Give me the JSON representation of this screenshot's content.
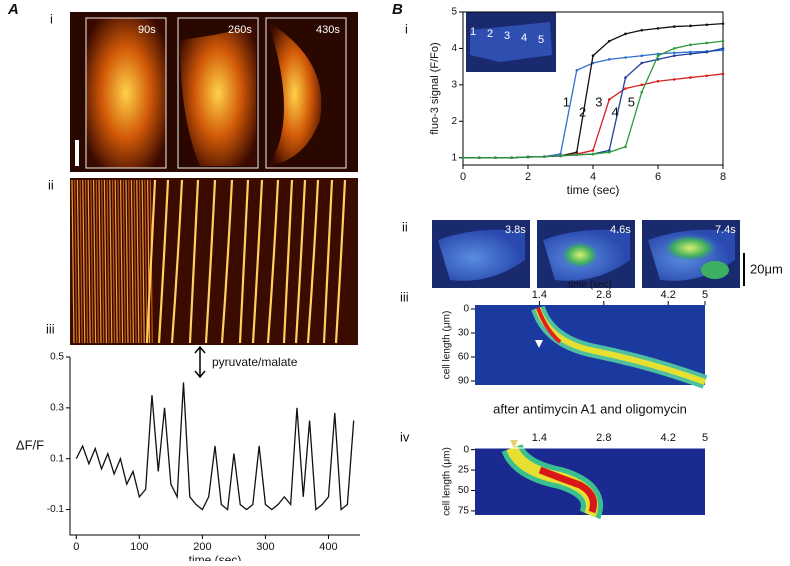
{
  "panel_a": {
    "label": "A",
    "sub_labels": [
      "i",
      "ii",
      "iii"
    ],
    "image_times": [
      "90s",
      "260s",
      "430s"
    ],
    "annotation": "pyruvate/malate",
    "chart": {
      "type": "line",
      "color": "#111111",
      "x": [
        0,
        10,
        20,
        30,
        40,
        50,
        60,
        70,
        80,
        90,
        100,
        110,
        120,
        130,
        140,
        150,
        160,
        170,
        180,
        190,
        200,
        210,
        220,
        230,
        240,
        250,
        260,
        270,
        280,
        290,
        300,
        310,
        320,
        330,
        340,
        350,
        360,
        370,
        380,
        390,
        400,
        410,
        420,
        430,
        440
      ],
      "values": [
        0.1,
        0.15,
        0.08,
        0.14,
        0.06,
        0.12,
        0.04,
        0.1,
        0.0,
        0.05,
        -0.05,
        -0.02,
        0.35,
        0.05,
        0.3,
        0.0,
        -0.05,
        0.4,
        -0.05,
        -0.08,
        -0.1,
        -0.05,
        0.15,
        -0.08,
        -0.1,
        0.12,
        -0.08,
        -0.1,
        -0.08,
        0.15,
        -0.08,
        -0.1,
        -0.08,
        -0.05,
        -0.08,
        0.3,
        -0.05,
        0.25,
        -0.1,
        -0.08,
        -0.05,
        0.28,
        -0.1,
        -0.08,
        0.25
      ],
      "xlim": [
        -10,
        450
      ],
      "ylim": [
        -0.2,
        0.5
      ],
      "xticks": [
        0,
        100,
        200,
        300,
        400
      ],
      "yticks": [
        -0.1,
        0.1,
        0.3,
        0.5
      ],
      "xlabel": "time (sec)",
      "ylabel": "ΔF/F"
    }
  },
  "panel_b": {
    "label": "B",
    "sub_labels": [
      "i",
      "ii",
      "iii",
      "iv"
    ],
    "chart": {
      "type": "line",
      "x": [
        0,
        0.5,
        1,
        1.5,
        2,
        2.5,
        3,
        3.5,
        4,
        4.5,
        5,
        5.5,
        6,
        6.5,
        7,
        7.5,
        8
      ],
      "series": [
        {
          "name": "1",
          "color": "#2f6fd0",
          "values": [
            1,
            1,
            1,
            1,
            1.02,
            1.03,
            1.1,
            3.4,
            3.6,
            3.7,
            3.75,
            3.8,
            3.85,
            3.88,
            3.9,
            3.92,
            3.95
          ]
        },
        {
          "name": "2",
          "color": "#111111",
          "values": [
            1,
            1,
            1,
            1,
            1.02,
            1.03,
            1.05,
            1.15,
            3.8,
            4.2,
            4.4,
            4.5,
            4.55,
            4.6,
            4.62,
            4.65,
            4.68
          ]
        },
        {
          "name": "3",
          "color": "#d62020",
          "values": [
            1,
            1,
            1,
            1,
            1.02,
            1.03,
            1.05,
            1.1,
            1.2,
            2.6,
            2.9,
            3.0,
            3.1,
            3.15,
            3.2,
            3.25,
            3.3
          ]
        },
        {
          "name": "4",
          "color": "#1f3f9f",
          "values": [
            1,
            1,
            1,
            1,
            1.02,
            1.03,
            1.05,
            1.08,
            1.1,
            1.2,
            3.2,
            3.6,
            3.7,
            3.8,
            3.85,
            3.9,
            4.0
          ]
        },
        {
          "name": "5",
          "color": "#2a9a3a",
          "values": [
            1,
            1,
            1,
            1,
            1.02,
            1.03,
            1.05,
            1.08,
            1.1,
            1.15,
            1.3,
            2.8,
            3.8,
            4.0,
            4.1,
            4.15,
            4.2
          ]
        }
      ],
      "xlim": [
        0,
        8
      ],
      "ylim": [
        0.8,
        5
      ],
      "xticks": [
        0,
        2,
        4,
        6,
        8
      ],
      "yticks": [
        1,
        2,
        3,
        4,
        5
      ],
      "xlabel": "time (sec)",
      "ylabel": "fluo-3 signal (F/Fo)"
    },
    "inset_labels": [
      "1",
      "2",
      "3",
      "4",
      "5"
    ],
    "image_times": [
      "3.8s",
      "4.6s",
      "7.4s"
    ],
    "scale_bar": "20μm",
    "kymograph_iii": {
      "xlabel": "time (sec)",
      "ylabel": "cell length (μm)",
      "xlim": [
        0,
        5
      ],
      "ylim": [
        95,
        -5
      ],
      "xticks": [
        1.4,
        2.8,
        4.2,
        5
      ],
      "yticks": [
        0,
        30,
        60,
        90
      ]
    },
    "caption": "after antimycin A1 and oligomycin",
    "kymograph_iv": {
      "ylabel": "cell length (μm)",
      "xlim": [
        0,
        5
      ],
      "ylim": [
        80,
        -2
      ],
      "xticks": [
        1.4,
        2.8,
        4.2,
        5
      ],
      "yticks": [
        0,
        25,
        50,
        75
      ]
    }
  }
}
